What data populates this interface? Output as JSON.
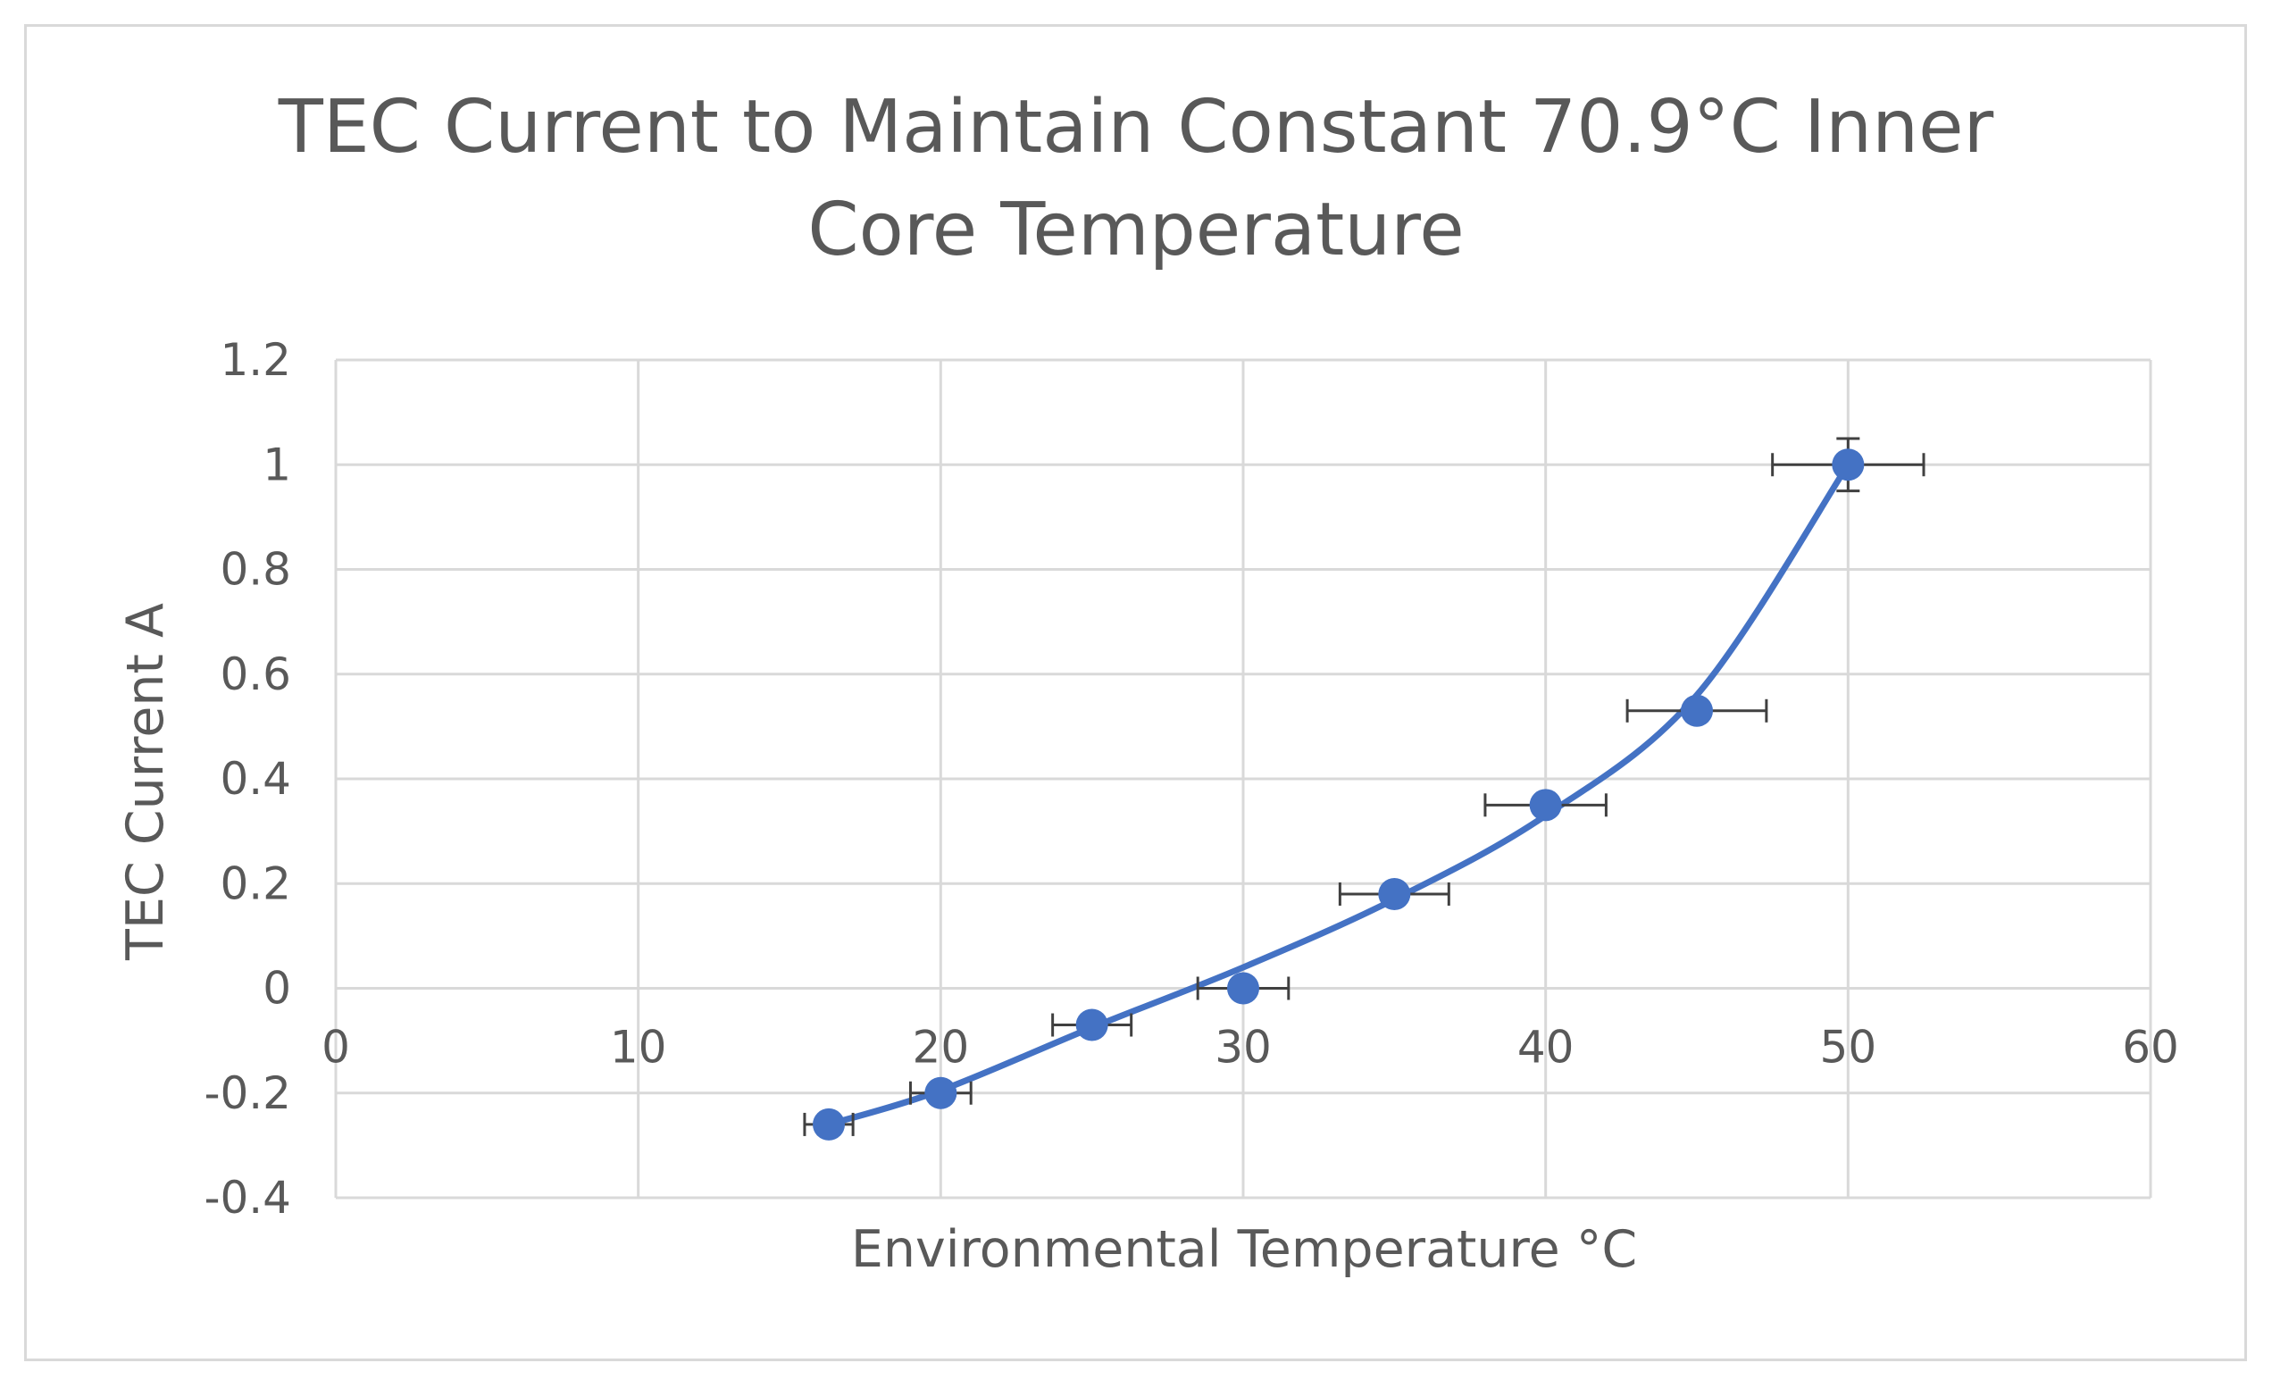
{
  "chart_data": {
    "type": "scatter",
    "title_lines": [
      "TEC Current to Maintain  Constant 70.9°C Inner",
      "Core Temperature"
    ],
    "xlabel": "Environmental Temperature °C",
    "ylabel": "TEC Current A",
    "xlim": [
      0,
      60
    ],
    "ylim": [
      -0.4,
      1.2
    ],
    "x_ticks": [
      0,
      10,
      20,
      30,
      40,
      50,
      60
    ],
    "x_tick_labels": [
      "0",
      "10",
      "20",
      "30",
      "40",
      "50",
      "60"
    ],
    "y_ticks": [
      -0.4,
      -0.2,
      0,
      0.2,
      0.4,
      0.6,
      0.8,
      1,
      1.2
    ],
    "y_tick_labels": [
      "-0.4",
      "-0.2",
      "0",
      "0.2",
      "0.4",
      "0.6",
      "0.8",
      "1",
      "1.2"
    ],
    "grid": true,
    "legend": "none",
    "series": [
      {
        "name": "TEC Current",
        "color": "#4472c4",
        "x": [
          16.3,
          20,
          25,
          30,
          35,
          40,
          45,
          50
        ],
        "y": [
          -0.26,
          -0.2,
          -0.07,
          0.0,
          0.18,
          0.35,
          0.53,
          1.0
        ],
        "x_error": [
          0.8,
          1.0,
          1.3,
          1.5,
          1.8,
          2.0,
          2.3,
          2.5
        ],
        "y_error": [
          0.0,
          0.0,
          0.0,
          0.0,
          0.0,
          0.0,
          0.0,
          0.05
        ]
      }
    ],
    "trendline": {
      "type": "smooth",
      "color": "#4472c4",
      "x": [
        16.3,
        20,
        25,
        30,
        35,
        40,
        45,
        50
      ],
      "y": [
        -0.26,
        -0.195,
        -0.075,
        0.04,
        0.17,
        0.33,
        0.56,
        1.0
      ]
    }
  }
}
